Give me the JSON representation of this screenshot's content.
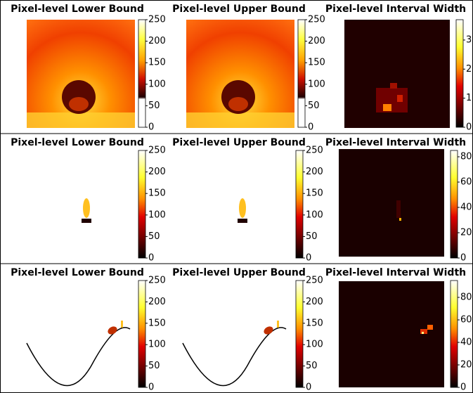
{
  "rows": [
    {
      "panels": [
        {
          "title": "Pixel-level Lower Bound",
          "clim": [
            0,
            250
          ],
          "ticks": [
            0,
            50,
            100,
            150,
            200,
            250
          ]
        },
        {
          "title": "Pixel-level Upper Bound",
          "clim": [
            0,
            250
          ],
          "ticks": [
            0,
            50,
            100,
            150,
            200,
            250
          ]
        },
        {
          "title": "Pixel-level Interval Width",
          "clim": [
            0,
            3.7
          ],
          "ticks": [
            0,
            1,
            2,
            3
          ]
        }
      ]
    },
    {
      "panels": [
        {
          "title": "Pixel-level Lower Bound",
          "clim": [
            0,
            250
          ],
          "ticks": [
            0,
            50,
            100,
            150,
            200,
            250
          ]
        },
        {
          "title": "Pixel-level Upper Bound",
          "clim": [
            0,
            250
          ],
          "ticks": [
            0,
            50,
            100,
            150,
            200,
            250
          ]
        },
        {
          "title": "Pixel-level Interval Width",
          "clim": [
            0,
            85
          ],
          "ticks": [
            0,
            20,
            40,
            60,
            80
          ]
        }
      ]
    },
    {
      "panels": [
        {
          "title": "Pixel-level Lower Bound",
          "clim": [
            0,
            250
          ],
          "ticks": [
            0,
            50,
            100,
            150,
            200,
            250
          ]
        },
        {
          "title": "Pixel-level Upper Bound",
          "clim": [
            0,
            250
          ],
          "ticks": [
            0,
            50,
            100,
            150,
            200,
            250
          ]
        },
        {
          "title": "Pixel-level Interval Width",
          "clim": [
            0,
            95
          ],
          "ticks": [
            0,
            20,
            40,
            60,
            80
          ]
        }
      ]
    }
  ]
}
